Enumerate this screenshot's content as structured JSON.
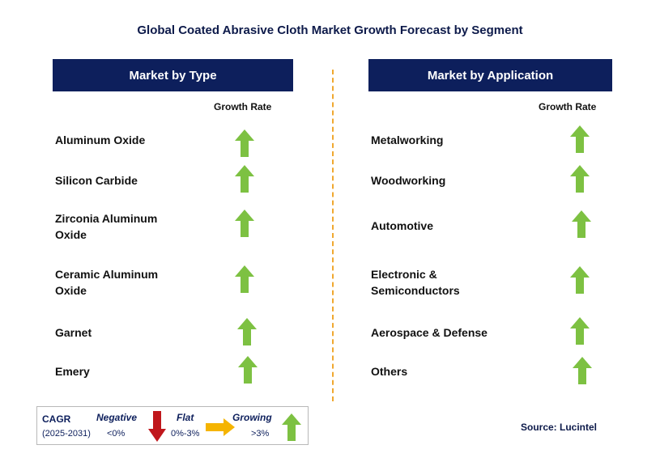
{
  "title": "Global Coated Abrasive Cloth Market Growth Forecast by Segment",
  "colors": {
    "header_bg": "#0d1f5c",
    "growing": "#7dc142",
    "negative": "#c0171c",
    "flat": "#f5b400",
    "divider": "#f0a830"
  },
  "left_panel": {
    "header": "Market by Type",
    "column_label": "Growth Rate",
    "items": [
      {
        "label_lines": [
          "Aluminum Oxide",
          ""
        ],
        "trend": "growing"
      },
      {
        "label_lines": [
          "Silicon Carbide",
          ""
        ],
        "trend": "growing"
      },
      {
        "label_lines": [
          "Zirconia Aluminum",
          "Oxide"
        ],
        "trend": "growing"
      },
      {
        "label_lines": [
          "Ceramic Aluminum",
          "Oxide"
        ],
        "trend": "growing"
      },
      {
        "label_lines": [
          "Garnet",
          ""
        ],
        "trend": "growing"
      },
      {
        "label_lines": [
          "Emery",
          ""
        ],
        "trend": "growing"
      }
    ]
  },
  "right_panel": {
    "header": "Market by Application",
    "column_label": "Growth Rate",
    "items": [
      {
        "label_lines": [
          "Metalworking",
          ""
        ],
        "trend": "growing"
      },
      {
        "label_lines": [
          "Woodworking",
          ""
        ],
        "trend": "growing"
      },
      {
        "label_lines": [
          "Automotive",
          ""
        ],
        "trend": "growing"
      },
      {
        "label_lines": [
          "Electronic &",
          "Semiconductors"
        ],
        "trend": "growing"
      },
      {
        "label_lines": [
          "Aerospace & Defense",
          ""
        ],
        "trend": "growing"
      },
      {
        "label_lines": [
          "Others",
          ""
        ],
        "trend": "growing"
      }
    ]
  },
  "legend": {
    "cagr": "CAGR",
    "period": "(2025-2031)",
    "negative": {
      "label": "Negative",
      "range": "<0%",
      "icon": "down-arrow-icon"
    },
    "flat": {
      "label": "Flat",
      "range": "0%-3%",
      "icon": "right-arrow-icon"
    },
    "growing": {
      "label": "Growing",
      "range": ">3%",
      "icon": "up-arrow-icon"
    }
  },
  "source": "Source: Lucintel"
}
